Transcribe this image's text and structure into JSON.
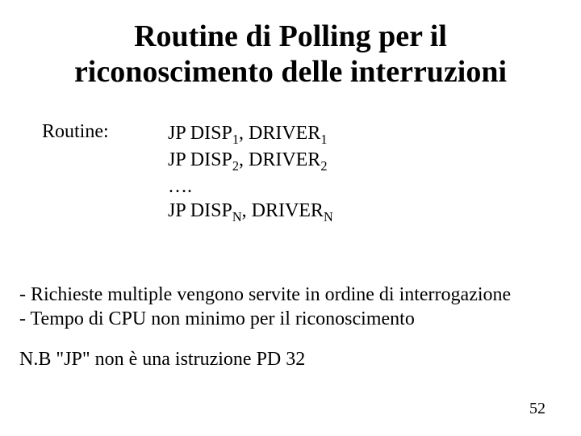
{
  "title_line1": "Routine di Polling per il",
  "title_line2": "riconoscimento delle interruzioni",
  "routine_label": "Routine:",
  "code": {
    "jp": "JP DISP",
    "driver": ", DRIVER",
    "sub1": "1",
    "sub2": "2",
    "subN": "N",
    "dots": "…."
  },
  "bullets": {
    "b1": "- Richieste multiple vengono servite in ordine di interrogazione",
    "b2": "- Tempo di CPU non minimo per il riconoscimento"
  },
  "nb": "N.B \"JP\" non è una istruzione PD 32",
  "page_number": "52"
}
